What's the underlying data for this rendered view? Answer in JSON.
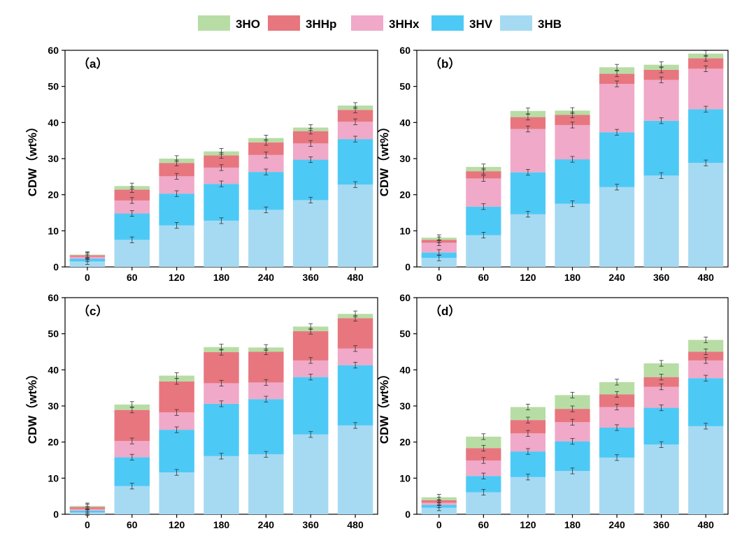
{
  "chart_data": {
    "type": "bar",
    "stacked": true,
    "legend": {
      "placement": "top-center",
      "entries": [
        {
          "name": "3HO",
          "color": "#b7dda5"
        },
        {
          "name": "3HHp",
          "color": "#e8767f"
        },
        {
          "name": "3HHx",
          "color": "#f0a9c8"
        },
        {
          "name": "3HV",
          "color": "#4dc9f6"
        },
        {
          "name": "3HB",
          "color": "#a6daf2"
        }
      ]
    },
    "stack_order": [
      "3HB",
      "3HV",
      "3HHx",
      "3HHp",
      "3HO"
    ],
    "panels": [
      {
        "label": "（a）",
        "ylabel": "CDW（wt%）",
        "ylim": [
          0,
          60
        ],
        "yticks": [
          "0",
          "10",
          "20",
          "30",
          "40",
          "50",
          "60"
        ],
        "categories": [
          "0",
          "60",
          "120",
          "180",
          "240",
          "360",
          "480"
        ],
        "series": [
          {
            "name": "3HB",
            "values": [
              1.5,
              7.5,
              11.5,
              12.8,
              15.8,
              18.5,
              22.8
            ]
          },
          {
            "name": "3HV",
            "values": [
              0.8,
              7.3,
              8.8,
              10.2,
              10.5,
              11.2,
              12.6
            ]
          },
          {
            "name": "3HHx",
            "values": [
              0.5,
              3.6,
              4.8,
              4.5,
              4.7,
              4.5,
              4.8
            ]
          },
          {
            "name": "3HHp",
            "values": [
              0.4,
              3.0,
              3.7,
              3.4,
              3.5,
              3.4,
              3.3
            ]
          },
          {
            "name": "3HO",
            "values": [
              0.2,
              1.0,
              1.2,
              1.1,
              1.2,
              1.0,
              1.2
            ]
          }
        ]
      },
      {
        "label": "（b）",
        "ylabel": "CDW（wt%）",
        "ylim": [
          0,
          60
        ],
        "yticks": [
          "0",
          "10",
          "20",
          "30",
          "40",
          "50",
          "60"
        ],
        "categories": [
          "0",
          "60",
          "120",
          "180",
          "240",
          "360",
          "480"
        ],
        "series": [
          {
            "name": "3HB",
            "values": [
              2.5,
              8.8,
              14.6,
              17.5,
              22.1,
              25.3,
              28.8
            ]
          },
          {
            "name": "3HV",
            "values": [
              1.5,
              7.9,
              11.6,
              12.3,
              15.2,
              15.2,
              14.9
            ]
          },
          {
            "name": "3HHx",
            "values": [
              2.7,
              7.8,
              12.0,
              9.5,
              13.4,
              11.3,
              11.2
            ]
          },
          {
            "name": "3HHp",
            "values": [
              0.8,
              2.0,
              3.3,
              2.8,
              2.8,
              2.8,
              2.9
            ]
          },
          {
            "name": "3HO",
            "values": [
              0.6,
              1.2,
              1.7,
              1.2,
              1.8,
              1.4,
              1.3
            ]
          }
        ]
      },
      {
        "label": "（c）",
        "ylabel": "CDW（wt%）",
        "ylim": [
          0,
          60
        ],
        "yticks": [
          "0",
          "10",
          "20",
          "30",
          "40",
          "50",
          "60"
        ],
        "categories": [
          "0",
          "60",
          "120",
          "180",
          "240",
          "360",
          "480"
        ],
        "series": [
          {
            "name": "3HB",
            "values": [
              0.5,
              7.8,
              11.6,
              16.1,
              16.6,
              22.1,
              24.6
            ]
          },
          {
            "name": "3HV",
            "values": [
              0.5,
              8.0,
              11.8,
              14.5,
              15.3,
              15.9,
              16.7
            ]
          },
          {
            "name": "3HHx",
            "values": [
              0.4,
              4.5,
              4.8,
              5.7,
              4.6,
              4.6,
              4.6
            ]
          },
          {
            "name": "3HHp",
            "values": [
              0.6,
              8.6,
              8.6,
              8.6,
              8.5,
              8.1,
              8.4
            ]
          },
          {
            "name": "3HO",
            "values": [
              0.3,
              1.5,
              1.6,
              1.4,
              1.2,
              1.3,
              1.2
            ]
          }
        ]
      },
      {
        "label": "（d）",
        "ylabel": "CDW（wt%）",
        "ylim": [
          0,
          60
        ],
        "yticks": [
          "0",
          "10",
          "20",
          "30",
          "40",
          "50",
          "60"
        ],
        "categories": [
          "0",
          "60",
          "120",
          "180",
          "240",
          "360",
          "480"
        ],
        "series": [
          {
            "name": "3HB",
            "values": [
              1.8,
              6.1,
              10.3,
              12.0,
              15.7,
              19.3,
              24.4
            ]
          },
          {
            "name": "3HV",
            "values": [
              0.8,
              4.5,
              7.1,
              8.2,
              8.3,
              10.2,
              13.3
            ]
          },
          {
            "name": "3HHx",
            "values": [
              0.6,
              4.3,
              5.0,
              5.3,
              5.7,
              5.8,
              4.9
            ]
          },
          {
            "name": "3HHp",
            "values": [
              0.7,
              3.4,
              3.7,
              3.7,
              3.5,
              2.7,
              2.4
            ]
          },
          {
            "name": "3HO",
            "values": [
              0.8,
              3.2,
              3.6,
              3.8,
              3.4,
              3.8,
              3.3
            ]
          }
        ]
      }
    ]
  }
}
